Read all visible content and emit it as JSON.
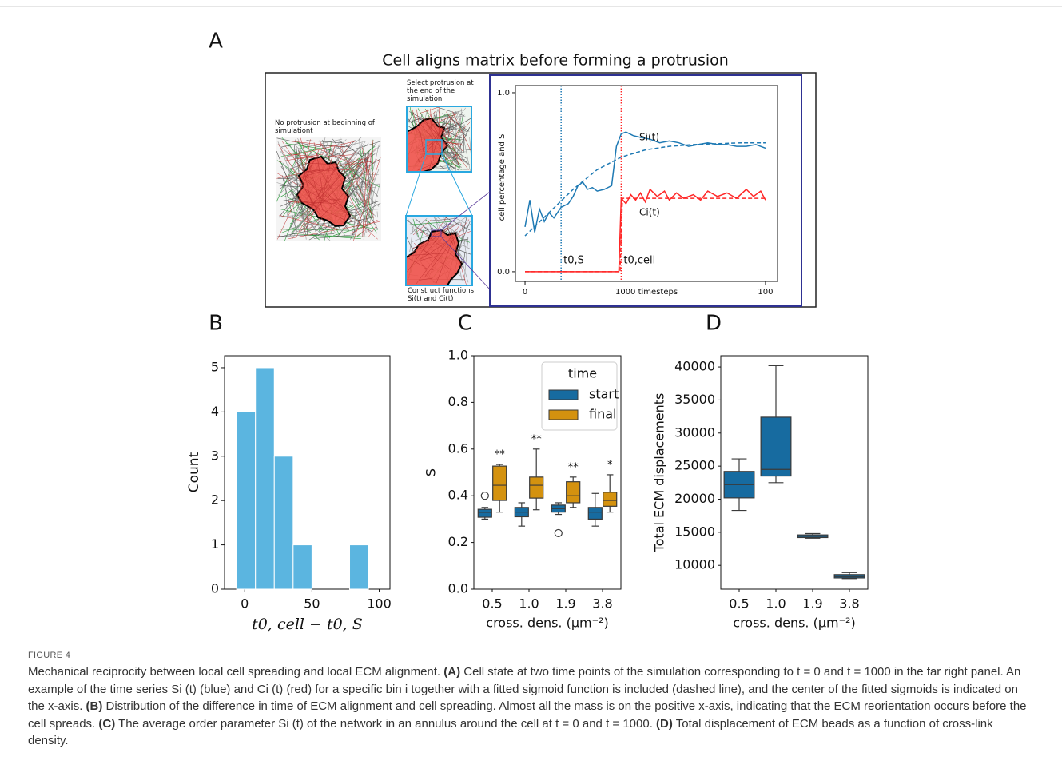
{
  "panel_labels": [
    "A",
    "B",
    "C",
    "D"
  ],
  "panel_a": {
    "title": "Cell aligns matrix before forming a protrusion",
    "note_start": "No protrusion at beginning of simulationt",
    "note_select": "Select protrusion at the end of the simulation",
    "note_construct": "Construct functions Si(t) and Ci(t)"
  },
  "chart_data": [
    {
      "type": "line",
      "y_label": "cell percentage and S",
      "x_label": "1000 timesteps",
      "xlim": [
        -4,
        105
      ],
      "ylim": [
        -0.054,
        1.04
      ],
      "xticks": [
        0,
        100
      ],
      "yticks": [
        {
          "value": 0,
          "label": "0.0"
        },
        {
          "value": 1,
          "label": "1.0"
        }
      ],
      "series": [
        {
          "name": "Si(t)",
          "color": "#1f7ab4",
          "x": [
            0,
            2,
            4,
            6,
            8,
            10,
            12,
            15,
            18,
            20,
            22,
            24,
            26,
            28,
            30,
            33,
            36,
            38,
            40,
            42,
            45,
            48,
            52,
            56,
            60,
            64,
            68,
            72,
            76,
            80,
            84,
            88,
            92,
            96,
            100
          ],
          "values": [
            0.25,
            0.4,
            0.22,
            0.35,
            0.28,
            0.33,
            0.3,
            0.36,
            0.38,
            0.42,
            0.48,
            0.5,
            0.46,
            0.47,
            0.45,
            0.46,
            0.48,
            0.7,
            0.77,
            0.78,
            0.76,
            0.75,
            0.74,
            0.72,
            0.73,
            0.72,
            0.7,
            0.71,
            0.72,
            0.71,
            0.71,
            0.7,
            0.7,
            0.71,
            0.69
          ]
        },
        {
          "color": "#1f7ab4",
          "dashed": true,
          "x": [
            0,
            10,
            20,
            30,
            40,
            50,
            60,
            70,
            80,
            90,
            100
          ],
          "values": [
            0.2,
            0.33,
            0.46,
            0.57,
            0.64,
            0.68,
            0.7,
            0.71,
            0.715,
            0.72,
            0.72
          ]
        },
        {
          "name": "Ci(t)",
          "color": "#ff2626",
          "x": [
            0,
            39,
            40,
            42,
            44,
            46,
            48,
            50,
            52,
            55,
            58,
            60,
            63,
            66,
            70,
            73,
            76,
            80,
            84,
            88,
            92,
            95,
            98,
            100
          ],
          "values": [
            0,
            0,
            0.41,
            0.38,
            0.43,
            0.4,
            0.44,
            0.39,
            0.46,
            0.42,
            0.45,
            0.4,
            0.44,
            0.41,
            0.43,
            0.4,
            0.45,
            0.42,
            0.44,
            0.41,
            0.46,
            0.42,
            0.45,
            0.4
          ]
        },
        {
          "color": "#ff2626",
          "dashed": true,
          "x": [
            0,
            39.5,
            40.5,
            100
          ],
          "values": [
            0,
            0,
            0.41,
            0.41
          ]
        }
      ],
      "markers": [
        {
          "label": "t0,S",
          "x": 15,
          "color": "#1f7ab4"
        },
        {
          "label": "t0,cell",
          "x": 40,
          "color": "#ff2626"
        }
      ]
    },
    {
      "type": "histogram",
      "x_label": "t0, cell − t0, S",
      "y_label": "Count",
      "bins": [
        -6,
        8,
        22,
        36,
        50,
        64,
        78,
        92
      ],
      "values": [
        4,
        5,
        3,
        1,
        0,
        0,
        1
      ],
      "color": "#5bb5e0",
      "xlim": [
        -15,
        108
      ],
      "ylim": [
        0,
        5.27
      ],
      "xticks": [
        0,
        50,
        100
      ],
      "yticks": [
        0,
        1,
        2,
        3,
        4,
        5
      ]
    },
    {
      "type": "box",
      "x_label": "cross. dens. (μm⁻²)",
      "y_label": "S",
      "categories": [
        "0.5",
        "1.0",
        "1.9",
        "3.8"
      ],
      "ylim": [
        0,
        1.0
      ],
      "yticks": [
        {
          "value": 0,
          "label": "0.0"
        },
        0.2,
        0.4,
        0.6,
        0.8,
        {
          "value": 1,
          "label": "1.0"
        }
      ],
      "legend_title": "time",
      "annotations": [
        "**",
        "**",
        "**",
        "*"
      ],
      "series": [
        {
          "name": "start",
          "color": "#176ba0",
          "values": [
            {
              "whislo": 0.3,
              "q1": 0.308,
              "med": 0.329,
              "q3": 0.342,
              "whishi": 0.35,
              "outliers": [
                0.4
              ]
            },
            {
              "whislo": 0.27,
              "q1": 0.31,
              "med": 0.33,
              "q3": 0.35,
              "whishi": 0.37
            },
            {
              "whislo": 0.32,
              "q1": 0.33,
              "med": 0.345,
              "q3": 0.36,
              "whishi": 0.37,
              "outliers": [
                0.24
              ]
            },
            {
              "whislo": 0.27,
              "q1": 0.3,
              "med": 0.33,
              "q3": 0.35,
              "whishi": 0.41
            }
          ]
        },
        {
          "name": "final",
          "color": "#d4920f",
          "values": [
            {
              "whislo": 0.33,
              "q1": 0.38,
              "med": 0.445,
              "q3": 0.527,
              "whishi": 0.534
            },
            {
              "whislo": 0.34,
              "q1": 0.39,
              "med": 0.445,
              "q3": 0.48,
              "whishi": 0.6
            },
            {
              "whislo": 0.35,
              "q1": 0.37,
              "med": 0.4,
              "q3": 0.46,
              "whishi": 0.48
            },
            {
              "whislo": 0.33,
              "q1": 0.355,
              "med": 0.38,
              "q3": 0.415,
              "whishi": 0.49
            }
          ]
        }
      ]
    },
    {
      "type": "box",
      "x_label": "cross. dens. (μm⁻²)",
      "y_label": "Total ECM displacements",
      "categories": [
        "0.5",
        "1.0",
        "1.9",
        "3.8"
      ],
      "ylim": [
        6400,
        41700
      ],
      "yticks": [
        10000,
        15000,
        20000,
        25000,
        30000,
        35000,
        40000
      ],
      "series": [
        {
          "color": "#176ba0",
          "values": [
            {
              "whislo": 18300,
              "q1": 20200,
              "med": 22200,
              "q3": 24200,
              "whishi": 26100
            },
            {
              "whislo": 22500,
              "q1": 23500,
              "med": 24500,
              "q3": 32400,
              "whishi": 40200
            },
            {
              "whislo": 14100,
              "q1": 14200,
              "med": 14400,
              "q3": 14600,
              "whishi": 14800
            },
            {
              "whislo": 8000,
              "q1": 8100,
              "med": 8300,
              "q3": 8600,
              "whishi": 8900
            }
          ]
        }
      ]
    }
  ],
  "caption": {
    "figure_label": "FIGURE 4",
    "lead": "Mechanical reciprocity between local cell spreading and local ECM alignment.",
    "items": [
      {
        "label": "(A)",
        "text": "Cell state at two time points of the simulation corresponding to t = 0 and t = 1000 in the far right panel. An example of the time series Si (t) (blue) and Ci (t) (red) for a specific bin i together with a fitted sigmoid function is included (dashed line), and the center of the fitted sigmoids is indicated on the x-axis."
      },
      {
        "label": "(B)",
        "text": "Distribution of the difference in time of ECM alignment and cell spreading. Almost all the mass is on the positive x-axis, indicating that the ECM reorientation occurs before the cell spreads."
      },
      {
        "label": "(C)",
        "text": "The average order parameter Si (t) of the network in an annulus around the cell at t = 0 and t = 1000."
      },
      {
        "label": "(D)",
        "text": "Total displacement of ECM beads as a function of cross-link density."
      }
    ]
  }
}
